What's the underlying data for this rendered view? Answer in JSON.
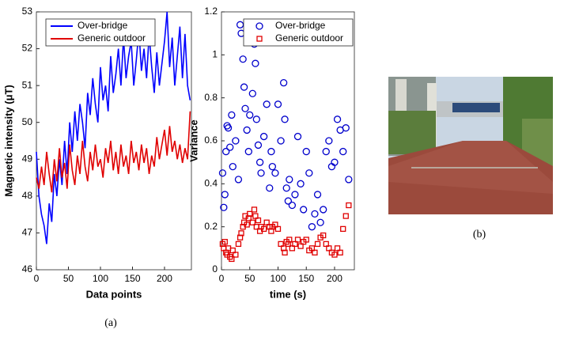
{
  "chart_data": [
    {
      "type": "line",
      "xlabel": "Data points",
      "ylabel": "Magnetic intensity (μT)",
      "xlim": [
        0,
        242
      ],
      "xticks": [
        0,
        50,
        100,
        150,
        200
      ],
      "ylim": [
        46,
        53
      ],
      "yticks": [
        46,
        47,
        48,
        49,
        50,
        51,
        52,
        53
      ],
      "legend": "top-left",
      "x": [
        0,
        4,
        8,
        12,
        16,
        20,
        24,
        28,
        32,
        36,
        40,
        44,
        48,
        52,
        56,
        60,
        64,
        68,
        72,
        76,
        80,
        84,
        88,
        92,
        96,
        100,
        104,
        108,
        112,
        116,
        120,
        124,
        128,
        132,
        136,
        140,
        144,
        148,
        152,
        156,
        160,
        164,
        168,
        172,
        176,
        180,
        184,
        188,
        192,
        196,
        200,
        204,
        208,
        212,
        216,
        220,
        224,
        228,
        232,
        236,
        240
      ],
      "series": [
        {
          "name": "Over-bridge",
          "color": "#0000ff",
          "values": [
            49.2,
            48.0,
            47.5,
            47.2,
            46.7,
            47.8,
            47.3,
            48.6,
            48.0,
            49.0,
            48.3,
            49.5,
            48.6,
            50.0,
            49.2,
            50.3,
            49.5,
            50.5,
            50.0,
            49.3,
            50.8,
            50.2,
            51.2,
            50.5,
            50.0,
            51.5,
            50.6,
            51.0,
            50.3,
            51.8,
            50.8,
            51.3,
            52.0,
            51.0,
            52.3,
            51.2,
            51.8,
            52.2,
            51.0,
            51.7,
            52.5,
            51.4,
            52.0,
            51.2,
            52.4,
            51.5,
            50.8,
            51.9,
            51.0,
            51.6,
            52.2,
            53.0,
            51.5,
            52.3,
            51.0,
            51.8,
            52.6,
            51.2,
            52.4,
            51.0,
            50.6
          ]
        },
        {
          "name": "Generic outdoor",
          "color": "#e00000",
          "values": [
            48.5,
            48.2,
            48.8,
            48.3,
            49.2,
            48.6,
            48.1,
            49.0,
            48.4,
            49.3,
            48.5,
            48.9,
            48.2,
            49.4,
            48.7,
            48.3,
            49.1,
            48.6,
            49.5,
            48.8,
            48.4,
            49.2,
            48.7,
            49.4,
            48.8,
            49.0,
            48.5,
            49.3,
            48.9,
            49.5,
            48.7,
            49.2,
            48.6,
            49.4,
            48.8,
            49.1,
            48.6,
            49.5,
            48.9,
            49.2,
            48.7,
            49.4,
            48.9,
            49.3,
            48.6,
            49.1,
            48.8,
            49.6,
            49.0,
            49.4,
            49.8,
            49.1,
            49.9,
            49.2,
            49.5,
            49.0,
            49.4,
            48.9,
            49.3,
            49.0,
            50.3
          ]
        }
      ]
    },
    {
      "type": "scatter",
      "xlabel": "time (s)",
      "ylabel": "Variance",
      "xlim": [
        0,
        235
      ],
      "xticks": [
        0,
        50,
        100,
        150,
        200
      ],
      "ylim": [
        0,
        1.2
      ],
      "yticks": [
        0,
        0.2,
        0.4,
        0.6,
        0.8,
        1,
        1.2
      ],
      "legend": "top-right",
      "series": [
        {
          "name": "Over-bridge",
          "color": "#0000cc",
          "marker": "circle",
          "x": [
            2,
            4,
            6,
            8,
            10,
            12,
            15,
            18,
            20,
            25,
            30,
            33,
            35,
            38,
            40,
            42,
            45,
            48,
            50,
            55,
            58,
            60,
            62,
            65,
            68,
            70,
            75,
            80,
            85,
            88,
            90,
            95,
            100,
            105,
            110,
            112,
            115,
            118,
            120,
            125,
            130,
            135,
            140,
            145,
            150,
            155,
            160,
            165,
            170,
            175,
            180,
            185,
            190,
            195,
            200,
            205,
            210,
            215,
            220,
            225
          ],
          "values": [
            0.45,
            0.29,
            0.35,
            0.55,
            0.67,
            0.66,
            0.57,
            0.72,
            0.48,
            0.6,
            0.42,
            1.14,
            1.1,
            0.98,
            0.85,
            0.75,
            0.65,
            0.55,
            0.72,
            0.82,
            1.05,
            0.96,
            0.7,
            0.58,
            0.5,
            0.45,
            0.62,
            0.77,
            0.38,
            0.55,
            0.48,
            0.45,
            0.77,
            0.6,
            0.87,
            0.7,
            0.38,
            0.32,
            0.42,
            0.3,
            0.35,
            0.62,
            0.4,
            0.28,
            0.55,
            0.45,
            0.2,
            0.26,
            0.35,
            0.22,
            0.28,
            0.55,
            0.6,
            0.48,
            0.5,
            0.7,
            0.65,
            0.55,
            0.66,
            0.42
          ]
        },
        {
          "name": "Generic outdoor",
          "color": "#e00000",
          "marker": "square",
          "x": [
            2,
            4,
            6,
            8,
            10,
            12,
            15,
            18,
            20,
            25,
            30,
            33,
            35,
            38,
            40,
            42,
            45,
            48,
            50,
            55,
            58,
            60,
            62,
            65,
            68,
            70,
            75,
            80,
            85,
            88,
            90,
            95,
            100,
            105,
            110,
            112,
            115,
            118,
            120,
            125,
            130,
            135,
            140,
            145,
            150,
            155,
            160,
            165,
            170,
            175,
            180,
            185,
            190,
            195,
            200,
            205,
            210,
            215,
            220,
            225
          ],
          "values": [
            0.12,
            0.1,
            0.13,
            0.08,
            0.07,
            0.1,
            0.06,
            0.05,
            0.09,
            0.07,
            0.12,
            0.15,
            0.17,
            0.2,
            0.22,
            0.25,
            0.21,
            0.24,
            0.26,
            0.22,
            0.28,
            0.25,
            0.2,
            0.23,
            0.18,
            0.2,
            0.19,
            0.22,
            0.2,
            0.18,
            0.2,
            0.21,
            0.19,
            0.12,
            0.1,
            0.08,
            0.13,
            0.12,
            0.14,
            0.1,
            0.12,
            0.14,
            0.11,
            0.13,
            0.14,
            0.09,
            0.1,
            0.08,
            0.12,
            0.15,
            0.16,
            0.12,
            0.1,
            0.08,
            0.07,
            0.1,
            0.08,
            0.19,
            0.25,
            0.3
          ]
        }
      ]
    }
  ],
  "captions": [
    "(a)",
    "(b)"
  ]
}
